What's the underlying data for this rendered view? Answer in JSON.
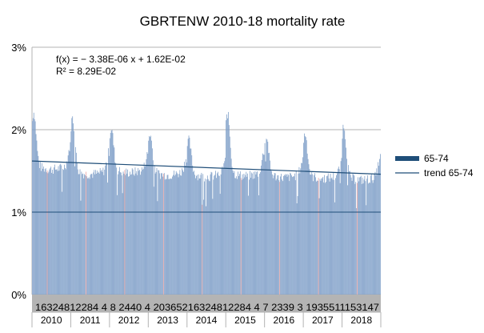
{
  "chart_data": {
    "type": "bar",
    "title": "GBRTENW 2010-18 mortality rate",
    "y_ticks": [
      "0%",
      "1%",
      "2%",
      "3%"
    ],
    "ylim": [
      0,
      0.03
    ],
    "grid": true,
    "series": [
      {
        "name": "65-74",
        "kind": "bar",
        "color": "#7f9fc8",
        "highlight_color": "#e8a0a0",
        "x_start_year": 2010,
        "weeks_per_year": 52,
        "approx_base_by_year": [
          0.0158,
          0.0152,
          0.0154,
          0.0151,
          0.0149,
          0.015,
          0.0148,
          0.0147,
          0.0145
        ],
        "winter_peaks": [
          0.0222,
          0.0215,
          0.0202,
          0.0195,
          0.0188,
          0.022,
          0.0193,
          0.0196,
          0.0206
        ]
      },
      {
        "name": "trend 65-74",
        "kind": "line",
        "color": "#1f4e79",
        "start_value": 0.0162,
        "end_value": 0.0146
      }
    ],
    "reference_line_value": 0.01,
    "trendline": {
      "equation": "f(x) = − 3.38E-06 x + 1.62E-02",
      "r_squared": "R² = 8.29E-02"
    },
    "week_label_band": "16324812284 4 8 2440 4 20365216324812284 4 7 2339 3 1935511153147",
    "x_years": [
      "2010",
      "2011",
      "2012",
      "2013",
      "2014",
      "2015",
      "2016",
      "2017",
      "2018"
    ],
    "legend": {
      "position": "right",
      "items": [
        {
          "label": "65-74",
          "swatch": "bar",
          "color": "#1f4e79"
        },
        {
          "label": "trend 65-74",
          "swatch": "line",
          "color": "#1f4e79"
        }
      ]
    }
  }
}
